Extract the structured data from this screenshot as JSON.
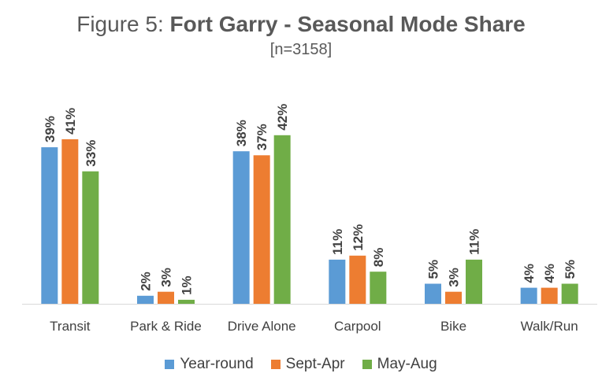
{
  "chart_data": {
    "type": "bar",
    "title_prefix": "Figure 5: ",
    "title_main": "Fort Garry - Seasonal Mode Share",
    "subtitle": "[n=3158]",
    "categories": [
      "Transit",
      "Park & Ride",
      "Drive Alone",
      "Carpool",
      "Bike",
      "Walk/Run"
    ],
    "series": [
      {
        "name": "Year-round",
        "color": "#5B9BD5",
        "values": [
          39,
          2,
          38,
          11,
          5,
          4
        ]
      },
      {
        "name": "Sept-Apr",
        "color": "#ED7D31",
        "values": [
          41,
          3,
          37,
          12,
          3,
          4
        ]
      },
      {
        "name": "May-Aug",
        "color": "#70AD47",
        "values": [
          33,
          1,
          42,
          8,
          11,
          5
        ]
      }
    ],
    "value_suffix": "%",
    "ylim": [
      0,
      50
    ],
    "grid": false,
    "legend_position": "bottom"
  }
}
